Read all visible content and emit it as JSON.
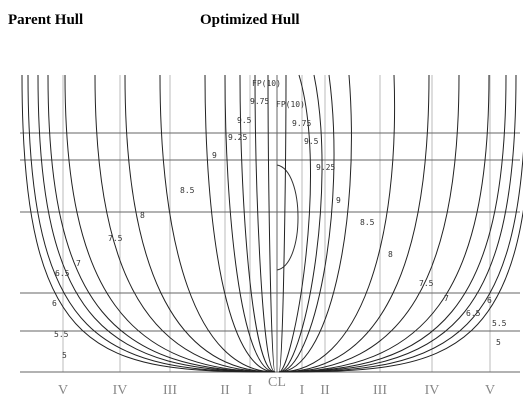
{
  "header": {
    "parent": "Parent Hull",
    "optimized": "Optimized Hull"
  },
  "parent_stations": [
    "FP(10)",
    "9.75",
    "9.5",
    "9.25",
    "9",
    "8.5",
    "8",
    "7.5",
    "7",
    "6.5",
    "6",
    "5.5",
    "5"
  ],
  "optimized_stations": [
    "FP(10)",
    "9.75",
    "9.5",
    "9.25",
    "9",
    "8.5",
    "8",
    "7.5",
    "7",
    "6.5",
    "6",
    "5.5",
    "5"
  ],
  "bottom_labels": [
    "V",
    "IV",
    "III",
    "II",
    "I",
    "CL",
    "I",
    "II",
    "III",
    "IV",
    "V"
  ]
}
